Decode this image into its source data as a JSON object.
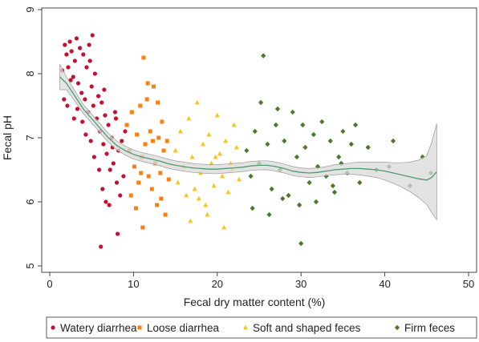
{
  "chart_data": {
    "type": "scatter",
    "xlabel": "Fecal dry matter content (%)",
    "ylabel": "Fecal pH",
    "xlim": [
      0,
      50
    ],
    "ylim": [
      5,
      9
    ],
    "xticks": [
      0,
      10,
      20,
      30,
      40,
      50
    ],
    "yticks": [
      5,
      6,
      7,
      8,
      9
    ],
    "grid": false,
    "legend_position": "bottom",
    "series": [
      {
        "name": "Watery diarrhea",
        "marker": "circle",
        "color": "#c8102e",
        "points": [
          [
            1.5,
            8.05
          ],
          [
            1.8,
            8.45
          ],
          [
            2.0,
            8.3
          ],
          [
            2.2,
            8.1
          ],
          [
            2.4,
            8.5
          ],
          [
            2.6,
            8.35
          ],
          [
            2.8,
            7.95
          ],
          [
            3.0,
            8.2
          ],
          [
            3.2,
            8.55
          ],
          [
            3.4,
            7.85
          ],
          [
            3.6,
            8.4
          ],
          [
            3.8,
            7.7
          ],
          [
            4.0,
            8.3
          ],
          [
            4.2,
            7.6
          ],
          [
            4.4,
            8.1
          ],
          [
            4.6,
            7.4
          ],
          [
            4.8,
            8.2
          ],
          [
            5.0,
            7.8
          ],
          [
            5.2,
            7.5
          ],
          [
            5.4,
            8.0
          ],
          [
            5.6,
            7.3
          ],
          [
            5.8,
            7.65
          ],
          [
            6.0,
            7.1
          ],
          [
            6.2,
            7.55
          ],
          [
            6.4,
            6.9
          ],
          [
            6.6,
            7.35
          ],
          [
            6.8,
            6.75
          ],
          [
            7.0,
            7.2
          ],
          [
            7.2,
            6.5
          ],
          [
            7.4,
            7.0
          ],
          [
            7.6,
            6.6
          ],
          [
            7.8,
            7.4
          ],
          [
            8.0,
            6.3
          ],
          [
            8.2,
            6.8
          ],
          [
            8.4,
            6.1
          ],
          [
            8.6,
            6.95
          ],
          [
            8.8,
            6.4
          ],
          [
            9.0,
            7.1
          ],
          [
            2.1,
            7.5
          ],
          [
            2.5,
            7.9
          ],
          [
            3.3,
            7.45
          ],
          [
            3.9,
            7.25
          ],
          [
            4.3,
            7.05
          ],
          [
            4.9,
            6.95
          ],
          [
            5.3,
            6.7
          ],
          [
            5.9,
            6.5
          ],
          [
            6.3,
            6.2
          ],
          [
            6.7,
            6.0
          ],
          [
            7.1,
            5.95
          ],
          [
            7.5,
            6.85
          ],
          [
            6.1,
            5.3
          ],
          [
            8.1,
            5.5
          ],
          [
            2.9,
            7.3
          ],
          [
            1.7,
            7.6
          ],
          [
            4.7,
            8.45
          ],
          [
            5.1,
            8.6
          ],
          [
            6.5,
            7.75
          ],
          [
            7.9,
            7.3
          ]
        ]
      },
      {
        "name": "Loose diarrhea",
        "marker": "square",
        "color": "#ff7f0e",
        "points": [
          [
            9.2,
            7.2
          ],
          [
            9.5,
            6.8
          ],
          [
            9.8,
            7.4
          ],
          [
            10.1,
            6.55
          ],
          [
            10.4,
            7.05
          ],
          [
            10.6,
            6.3
          ],
          [
            10.8,
            7.5
          ],
          [
            11.0,
            6.7
          ],
          [
            11.2,
            8.25
          ],
          [
            11.4,
            6.9
          ],
          [
            11.6,
            7.6
          ],
          [
            11.8,
            6.4
          ],
          [
            12.0,
            7.1
          ],
          [
            12.2,
            6.2
          ],
          [
            12.4,
            7.8
          ],
          [
            12.6,
            6.6
          ],
          [
            12.8,
            5.95
          ],
          [
            13.0,
            7.0
          ],
          [
            13.2,
            6.45
          ],
          [
            13.4,
            7.25
          ],
          [
            13.6,
            6.8
          ],
          [
            13.8,
            5.8
          ],
          [
            14.0,
            6.95
          ],
          [
            14.2,
            6.35
          ],
          [
            9.7,
            6.1
          ],
          [
            10.3,
            5.9
          ],
          [
            11.1,
            5.6
          ],
          [
            11.7,
            7.85
          ],
          [
            12.9,
            7.55
          ],
          [
            13.3,
            6.05
          ],
          [
            10.9,
            6.45
          ],
          [
            12.3,
            6.95
          ]
        ]
      },
      {
        "name": "Soft and shaped feces",
        "marker": "triangle",
        "color": "#f5c518",
        "points": [
          [
            15.0,
            6.8
          ],
          [
            15.3,
            6.3
          ],
          [
            15.6,
            7.1
          ],
          [
            16.0,
            6.55
          ],
          [
            16.3,
            6.1
          ],
          [
            16.6,
            7.3
          ],
          [
            17.0,
            6.7
          ],
          [
            17.3,
            6.2
          ],
          [
            17.6,
            7.55
          ],
          [
            18.0,
            6.45
          ],
          [
            18.3,
            6.9
          ],
          [
            18.6,
            5.95
          ],
          [
            19.0,
            7.05
          ],
          [
            19.3,
            6.6
          ],
          [
            19.6,
            6.25
          ],
          [
            20.0,
            7.35
          ],
          [
            20.3,
            6.75
          ],
          [
            20.6,
            6.4
          ],
          [
            21.0,
            6.95
          ],
          [
            21.3,
            6.15
          ],
          [
            21.6,
            6.6
          ],
          [
            22.0,
            7.2
          ],
          [
            22.3,
            6.85
          ],
          [
            22.6,
            6.35
          ],
          [
            16.8,
            5.7
          ],
          [
            18.8,
            5.8
          ],
          [
            20.8,
            5.6
          ],
          [
            17.8,
            6.05
          ],
          [
            19.8,
            6.7
          ],
          [
            21.8,
            6.5
          ]
        ]
      },
      {
        "name": "Firm feces",
        "marker": "diamond",
        "color": "#4a7a2a",
        "points": [
          [
            23.5,
            6.8
          ],
          [
            24.0,
            6.4
          ],
          [
            24.5,
            7.1
          ],
          [
            25.0,
            6.6
          ],
          [
            25.5,
            8.28
          ],
          [
            26.0,
            6.9
          ],
          [
            26.5,
            6.2
          ],
          [
            27.0,
            7.2
          ],
          [
            27.5,
            6.5
          ],
          [
            28.0,
            6.95
          ],
          [
            28.5,
            6.1
          ],
          [
            29.0,
            7.4
          ],
          [
            29.5,
            6.7
          ],
          [
            30.0,
            5.35
          ],
          [
            30.5,
            6.85
          ],
          [
            31.0,
            6.3
          ],
          [
            31.5,
            7.05
          ],
          [
            32.0,
            6.55
          ],
          [
            32.5,
            7.25
          ],
          [
            33.0,
            6.4
          ],
          [
            33.5,
            6.95
          ],
          [
            34.0,
            6.15
          ],
          [
            34.5,
            6.7
          ],
          [
            35.0,
            7.1
          ],
          [
            35.5,
            6.45
          ],
          [
            36.0,
            6.9
          ],
          [
            36.5,
            7.2
          ],
          [
            37.0,
            6.3
          ],
          [
            38.0,
            6.85
          ],
          [
            39.0,
            6.5
          ],
          [
            40.5,
            6.55
          ],
          [
            41.0,
            6.95
          ],
          [
            43.0,
            6.25
          ],
          [
            44.5,
            6.7
          ],
          [
            45.5,
            6.45
          ],
          [
            24.2,
            5.9
          ],
          [
            26.2,
            5.8
          ],
          [
            27.8,
            6.05
          ],
          [
            29.8,
            5.95
          ],
          [
            31.8,
            6.0
          ],
          [
            33.8,
            6.25
          ],
          [
            25.2,
            7.55
          ],
          [
            27.2,
            7.45
          ],
          [
            30.2,
            7.2
          ],
          [
            34.8,
            6.6
          ]
        ]
      }
    ],
    "fit": {
      "color": "#4f9a6e",
      "band_color": "#d9d9d9",
      "points": [
        [
          1.2,
          7.95,
          0.2
        ],
        [
          2.0,
          7.85,
          0.1
        ],
        [
          3.0,
          7.65,
          0.08
        ],
        [
          4.0,
          7.45,
          0.07
        ],
        [
          5.0,
          7.3,
          0.07
        ],
        [
          6.0,
          7.15,
          0.07
        ],
        [
          7.0,
          7.0,
          0.07
        ],
        [
          8.0,
          6.88,
          0.07
        ],
        [
          9.0,
          6.8,
          0.07
        ],
        [
          10.0,
          6.74,
          0.07
        ],
        [
          11.0,
          6.7,
          0.07
        ],
        [
          12.0,
          6.67,
          0.07
        ],
        [
          13.0,
          6.64,
          0.07
        ],
        [
          14.0,
          6.6,
          0.07
        ],
        [
          15.0,
          6.57,
          0.07
        ],
        [
          16.0,
          6.55,
          0.07
        ],
        [
          17.0,
          6.53,
          0.07
        ],
        [
          18.0,
          6.52,
          0.07
        ],
        [
          19.0,
          6.51,
          0.07
        ],
        [
          20.0,
          6.51,
          0.07
        ],
        [
          21.0,
          6.52,
          0.07
        ],
        [
          22.0,
          6.53,
          0.07
        ],
        [
          23.0,
          6.54,
          0.07
        ],
        [
          24.0,
          6.56,
          0.07
        ],
        [
          25.0,
          6.57,
          0.07
        ],
        [
          26.0,
          6.57,
          0.07
        ],
        [
          27.0,
          6.55,
          0.07
        ],
        [
          28.0,
          6.52,
          0.07
        ],
        [
          29.0,
          6.48,
          0.07
        ],
        [
          30.0,
          6.46,
          0.07
        ],
        [
          31.0,
          6.45,
          0.07
        ],
        [
          32.0,
          6.46,
          0.07
        ],
        [
          33.0,
          6.48,
          0.07
        ],
        [
          34.0,
          6.5,
          0.08
        ],
        [
          35.0,
          6.51,
          0.08
        ],
        [
          36.0,
          6.52,
          0.09
        ],
        [
          37.0,
          6.52,
          0.1
        ],
        [
          38.0,
          6.51,
          0.11
        ],
        [
          39.0,
          6.5,
          0.12
        ],
        [
          40.0,
          6.48,
          0.14
        ],
        [
          41.0,
          6.45,
          0.16
        ],
        [
          42.0,
          6.42,
          0.19
        ],
        [
          43.0,
          6.39,
          0.23
        ],
        [
          44.0,
          6.36,
          0.29
        ],
        [
          45.0,
          6.34,
          0.38
        ],
        [
          45.6,
          6.38,
          0.55
        ],
        [
          46.2,
          6.47,
          0.75
        ]
      ]
    }
  }
}
